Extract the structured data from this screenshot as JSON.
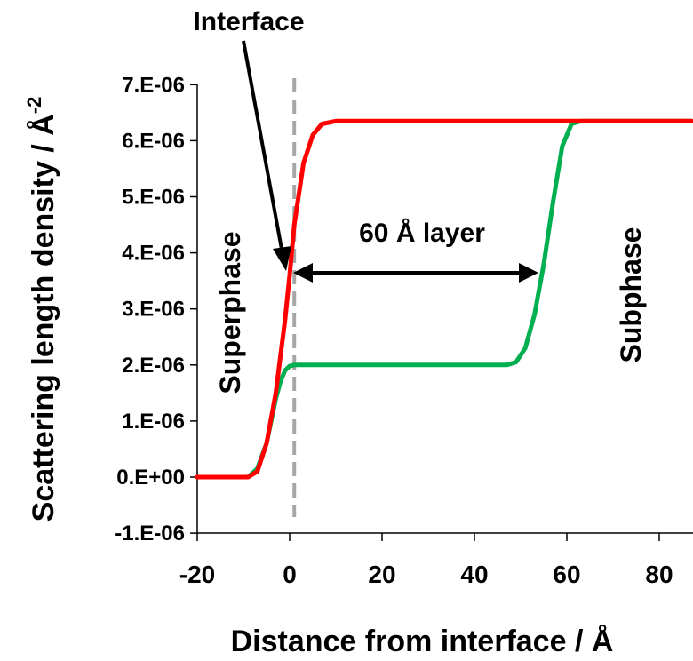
{
  "chart_data": {
    "type": "line",
    "xlabel": "Distance from interface / Å",
    "ylabel": "Scattering length density / Å",
    "ylabel_superscript": "-2",
    "xlim": [
      -20,
      87
    ],
    "ylim": [
      -1e-06,
      7e-06
    ],
    "x_ticks": [
      -20,
      0,
      20,
      40,
      60,
      80
    ],
    "x_tick_labels": [
      "-20",
      "0",
      "20",
      "40",
      "60",
      "80"
    ],
    "y_ticks": [
      -1e-06,
      0,
      1e-06,
      2e-06,
      3e-06,
      4e-06,
      5e-06,
      6e-06,
      7e-06
    ],
    "y_tick_labels": [
      "-1.E-06",
      "0.E+00",
      "1.E-06",
      "2.E-06",
      "3.E-06",
      "4.E-06",
      "5.E-06",
      "6.E-06",
      "7.E-06"
    ],
    "grid": false,
    "series": [
      {
        "color": "#ff0000",
        "x": [
          -20,
          -9,
          -7,
          -5,
          -3,
          -1,
          0,
          1,
          3,
          5,
          7,
          10,
          87
        ],
        "y": [
          0,
          0,
          1e-07,
          6e-07,
          1.5e-06,
          2.8e-06,
          3.6e-06,
          4.5e-06,
          5.6e-06,
          6.1e-06,
          6.3e-06,
          6.35e-06,
          6.35e-06
        ]
      },
      {
        "color": "#00b050",
        "x": [
          -20,
          -9,
          -7,
          -5,
          -4,
          -3,
          -2,
          -1,
          0,
          1,
          47,
          49,
          51,
          53,
          55,
          57,
          59,
          61,
          63,
          87
        ],
        "y": [
          0,
          0,
          1.5e-07,
          6e-07,
          1e-06,
          1.4e-06,
          1.7e-06,
          1.9e-06,
          1.98e-06,
          2e-06,
          2e-06,
          2.05e-06,
          2.3e-06,
          2.9e-06,
          3.8e-06,
          4.9e-06,
          5.9e-06,
          6.3e-06,
          6.35e-06,
          6.35e-06
        ]
      }
    ],
    "interface_line_x": 1,
    "annotations": {
      "interface": "Interface",
      "layer": "60 Å layer",
      "superphase": "Superphase",
      "subphase": "Subphase"
    }
  }
}
